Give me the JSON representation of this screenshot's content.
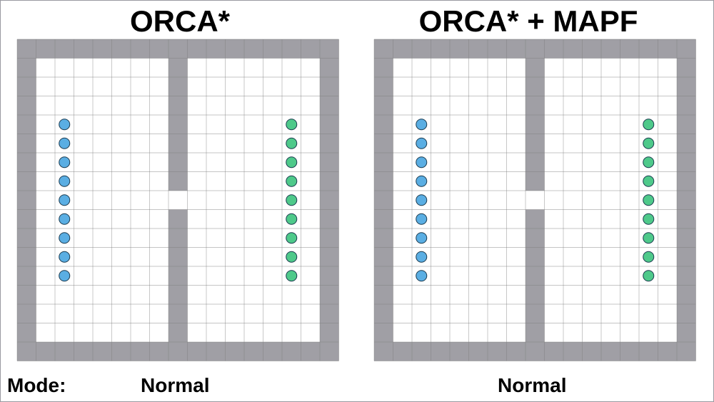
{
  "colors": {
    "wall": "#a09fa5",
    "grid": "#7d7d7d",
    "floor": "#ffffff",
    "agent_left": "#5aaee3",
    "agent_right": "#4ec98a",
    "agent_outline": "#1c3b4f"
  },
  "panels": [
    {
      "title": "ORCA*",
      "mode_value": "Normal",
      "agents_left": 9,
      "agents_right": 9
    },
    {
      "title": "ORCA* + MAPF",
      "mode_value": "Normal",
      "agents_left": 9,
      "agents_right": 9
    }
  ],
  "mode_label": "Mode:"
}
